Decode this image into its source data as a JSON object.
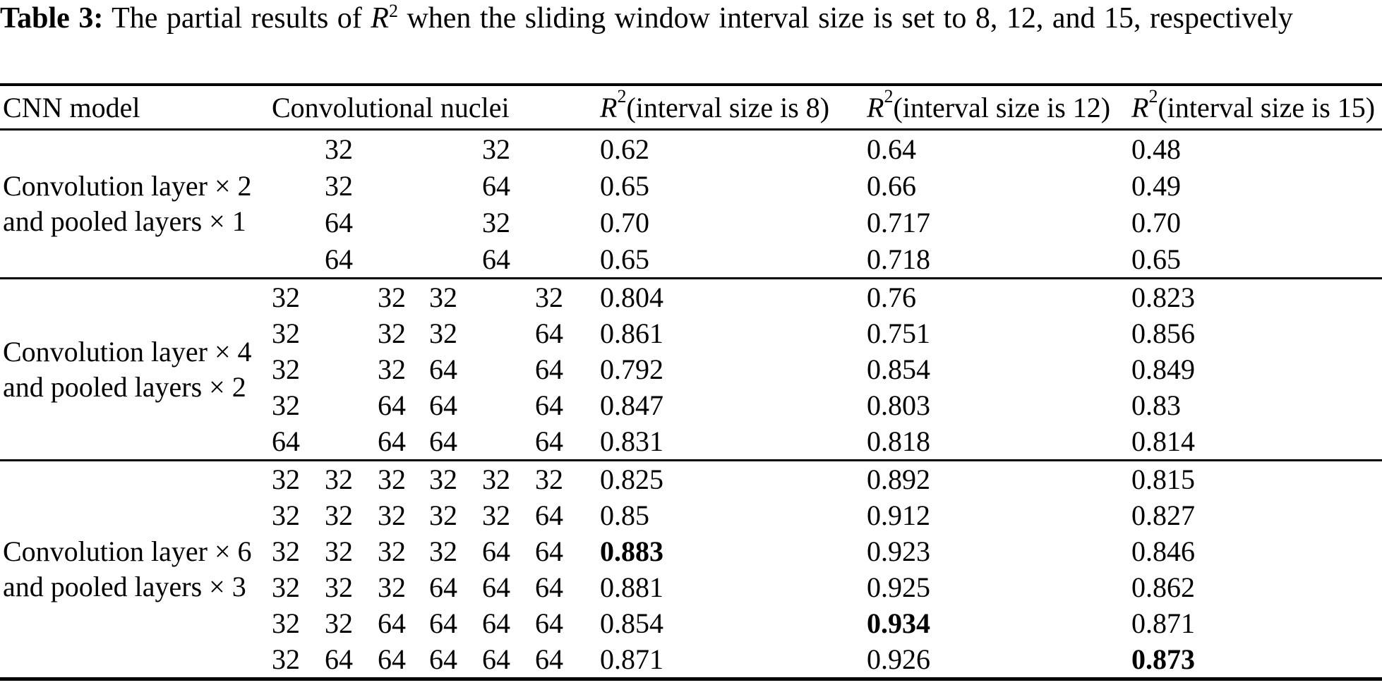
{
  "caption": {
    "label": "Table 3:",
    "before": " The partial results of ",
    "math_base": "R",
    "math_sup": "2",
    "after": " when the sliding window interval size is set to 8, 12, and 15, respectively"
  },
  "chart_data": {
    "type": "table",
    "headers": {
      "model": "CNN model",
      "nuclei": "Convolutional nuclei",
      "r_cols": [
        {
          "base": "R",
          "sup": "2",
          "rest": " (interval size is 8)"
        },
        {
          "base": "R",
          "sup": "2",
          "rest": " (interval size is 12)"
        },
        {
          "base": "R",
          "sup": "2",
          "rest": " (interval size is 15)"
        }
      ]
    },
    "groups": [
      {
        "label_lines": [
          "Convolution layer × 2",
          "and pooled layers × 1"
        ],
        "rows": [
          {
            "nuclei": [
              "",
              "32",
              "",
              "",
              "32",
              ""
            ],
            "r": [
              "0.62",
              "0.64",
              "0.48"
            ],
            "bold": [
              false,
              false,
              false
            ]
          },
          {
            "nuclei": [
              "",
              "32",
              "",
              "",
              "64",
              ""
            ],
            "r": [
              "0.65",
              "0.66",
              "0.49"
            ],
            "bold": [
              false,
              false,
              false
            ]
          },
          {
            "nuclei": [
              "",
              "64",
              "",
              "",
              "32",
              ""
            ],
            "r": [
              "0.70",
              "0.717",
              "0.70"
            ],
            "bold": [
              false,
              false,
              false
            ]
          },
          {
            "nuclei": [
              "",
              "64",
              "",
              "",
              "64",
              ""
            ],
            "r": [
              "0.65",
              "0.718",
              "0.65"
            ],
            "bold": [
              false,
              false,
              false
            ]
          }
        ]
      },
      {
        "label_lines": [
          "Convolution layer × 4",
          "and pooled layers × 2"
        ],
        "rows": [
          {
            "nuclei": [
              "32",
              "",
              "32",
              "32",
              "",
              "32"
            ],
            "r": [
              "0.804",
              "0.76",
              "0.823"
            ],
            "bold": [
              false,
              false,
              false
            ]
          },
          {
            "nuclei": [
              "32",
              "",
              "32",
              "32",
              "",
              "64"
            ],
            "r": [
              "0.861",
              "0.751",
              "0.856"
            ],
            "bold": [
              false,
              false,
              false
            ]
          },
          {
            "nuclei": [
              "32",
              "",
              "32",
              "64",
              "",
              "64"
            ],
            "r": [
              "0.792",
              "0.854",
              "0.849"
            ],
            "bold": [
              false,
              false,
              false
            ]
          },
          {
            "nuclei": [
              "32",
              "",
              "64",
              "64",
              "",
              "64"
            ],
            "r": [
              "0.847",
              "0.803",
              "0.83"
            ],
            "bold": [
              false,
              false,
              false
            ]
          },
          {
            "nuclei": [
              "64",
              "",
              "64",
              "64",
              "",
              "64"
            ],
            "r": [
              "0.831",
              "0.818",
              "0.814"
            ],
            "bold": [
              false,
              false,
              false
            ]
          }
        ]
      },
      {
        "label_lines": [
          "Convolution layer × 6",
          "and pooled layers × 3"
        ],
        "rows": [
          {
            "nuclei": [
              "32",
              "32",
              "32",
              "32",
              "32",
              "32"
            ],
            "r": [
              "0.825",
              "0.892",
              "0.815"
            ],
            "bold": [
              false,
              false,
              false
            ]
          },
          {
            "nuclei": [
              "32",
              "32",
              "32",
              "32",
              "32",
              "64"
            ],
            "r": [
              "0.85",
              "0.912",
              "0.827"
            ],
            "bold": [
              false,
              false,
              false
            ]
          },
          {
            "nuclei": [
              "32",
              "32",
              "32",
              "32",
              "64",
              "64"
            ],
            "r": [
              "0.883",
              "0.923",
              "0.846"
            ],
            "bold": [
              true,
              false,
              false
            ]
          },
          {
            "nuclei": [
              "32",
              "32",
              "32",
              "64",
              "64",
              "64"
            ],
            "r": [
              "0.881",
              "0.925",
              "0.862"
            ],
            "bold": [
              false,
              false,
              false
            ]
          },
          {
            "nuclei": [
              "32",
              "32",
              "64",
              "64",
              "64",
              "64"
            ],
            "r": [
              "0.854",
              "0.934",
              "0.871"
            ],
            "bold": [
              false,
              true,
              false
            ]
          },
          {
            "nuclei": [
              "32",
              "64",
              "64",
              "64",
              "64",
              "64"
            ],
            "r": [
              "0.871",
              "0.926",
              "0.873"
            ],
            "bold": [
              false,
              false,
              true
            ]
          }
        ]
      }
    ]
  }
}
